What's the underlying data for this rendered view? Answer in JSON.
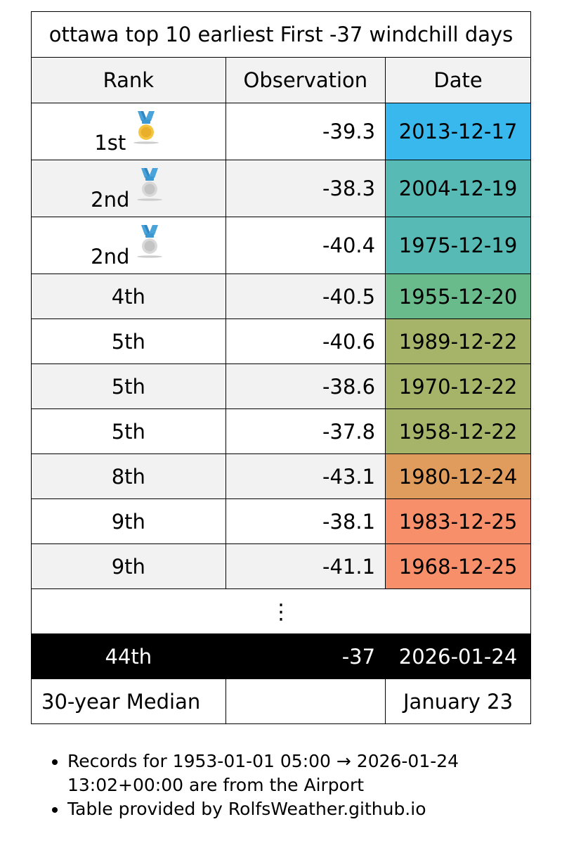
{
  "table": {
    "title": "ottawa top 10 earliest First -37 windchill days",
    "headers": {
      "rank": "Rank",
      "observation": "Observation",
      "date": "Date"
    },
    "rows": [
      {
        "rank": "1st",
        "observation": "-39.3",
        "date": "2013-12-17",
        "color": "#38b8ec",
        "medal": "gold-medal"
      },
      {
        "rank": "2nd",
        "observation": "-38.3",
        "date": "2004-12-19",
        "color": "#57bab5",
        "medal": "silver-medal"
      },
      {
        "rank": "2nd",
        "observation": "-40.4",
        "date": "1975-12-19",
        "color": "#57bab5",
        "medal": "silver-medal"
      },
      {
        "rank": "4th",
        "observation": "-40.5",
        "date": "1955-12-20",
        "color": "#69bb8c"
      },
      {
        "rank": "5th",
        "observation": "-40.6",
        "date": "1989-12-22",
        "color": "#a6b46a"
      },
      {
        "rank": "5th",
        "observation": "-38.6",
        "date": "1970-12-22",
        "color": "#a6b46a"
      },
      {
        "rank": "5th",
        "observation": "-37.8",
        "date": "1958-12-22",
        "color": "#a6b46a"
      },
      {
        "rank": "8th",
        "observation": "-43.1",
        "date": "1980-12-24",
        "color": "#e09c5d"
      },
      {
        "rank": "9th",
        "observation": "-38.1",
        "date": "1983-12-25",
        "color": "#f7906a"
      },
      {
        "rank": "9th",
        "observation": "-41.1",
        "date": "1968-12-25",
        "color": "#f7906a"
      }
    ],
    "ellipsis": "⋮",
    "current": {
      "rank": "44th",
      "observation": "-37",
      "date": "2026-01-24"
    },
    "median": {
      "label": "30-year Median",
      "observation": "",
      "date": "January 23"
    }
  },
  "notes": [
    "Records for 1953-01-01 05:00 → 2026-01-24 13:02+00:00 are from the Airport",
    "Table provided by RolfsWeather.github.io"
  ]
}
